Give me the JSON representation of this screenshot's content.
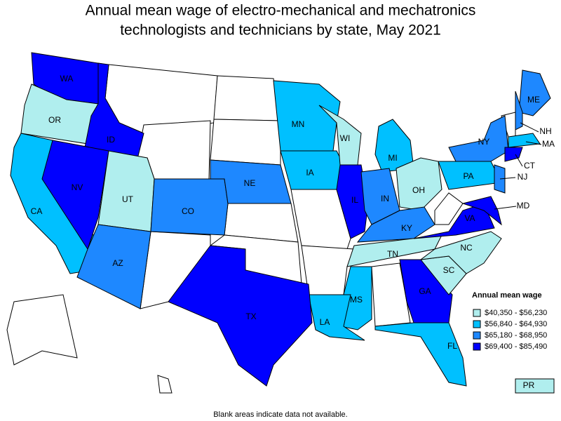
{
  "title": [
    "Annual mean wage of electro-mechanical and mechatronics",
    "technologists and technicians by state, May 2021"
  ],
  "legend": {
    "title": "Annual mean wage",
    "items": [
      {
        "label": "$40,350 - $56,230",
        "color": "#b0eeee"
      },
      {
        "label": "$56,840 - $64,930",
        "color": "#00c0ff"
      },
      {
        "label": "$65,180 - $68,950",
        "color": "#1e88ff"
      },
      {
        "label": "$69,400 - $85,490",
        "color": "#0000ff"
      }
    ]
  },
  "states": [
    {
      "label": "WA",
      "color": "#0000ff"
    },
    {
      "label": "OR",
      "color": "#b0eeee"
    },
    {
      "label": "CA",
      "color": "#00c0ff"
    },
    {
      "label": "ID",
      "color": "#0000ff"
    },
    {
      "label": "NV",
      "color": "#0000ff"
    },
    {
      "label": "UT",
      "color": "#b0eeee"
    },
    {
      "label": "AZ",
      "color": "#1e88ff"
    },
    {
      "label": "CO",
      "color": "#1e88ff"
    },
    {
      "label": "NE",
      "color": "#1e88ff"
    },
    {
      "label": "MN",
      "color": "#00c0ff"
    },
    {
      "label": "IA",
      "color": "#00c0ff"
    },
    {
      "label": "WI",
      "color": "#b0eeee"
    },
    {
      "label": "IL",
      "color": "#0000ff"
    },
    {
      "label": "MI",
      "color": "#00c0ff"
    },
    {
      "label": "IN",
      "color": "#1e88ff"
    },
    {
      "label": "OH",
      "color": "#b0eeee"
    },
    {
      "label": "KY",
      "color": "#1e88ff"
    },
    {
      "label": "TN",
      "color": "#b0eeee"
    },
    {
      "label": "MS",
      "color": "#00c0ff"
    },
    {
      "label": "LA",
      "color": "#00c0ff"
    },
    {
      "label": "TX",
      "color": "#0000ff"
    },
    {
      "label": "GA",
      "color": "#0000ff"
    },
    {
      "label": "FL",
      "color": "#00c0ff"
    },
    {
      "label": "SC",
      "color": "#b0eeee"
    },
    {
      "label": "NC",
      "color": "#b0eeee"
    },
    {
      "label": "VA",
      "color": "#0000ff"
    },
    {
      "label": "PA",
      "color": "#00c0ff"
    },
    {
      "label": "NY",
      "color": "#1e88ff"
    },
    {
      "label": "ME",
      "color": "#1e88ff"
    },
    {
      "label": "NH",
      "color": "#1e88ff"
    },
    {
      "label": "MA",
      "color": "#00c0ff"
    },
    {
      "label": "CT",
      "color": "#0000ff"
    },
    {
      "label": "NJ",
      "color": "#1e88ff"
    },
    {
      "label": "MD",
      "color": "#0000ff"
    },
    {
      "label": "PR",
      "color": "#b0eeee"
    }
  ],
  "footnote": "Blank areas indicate data not available."
}
